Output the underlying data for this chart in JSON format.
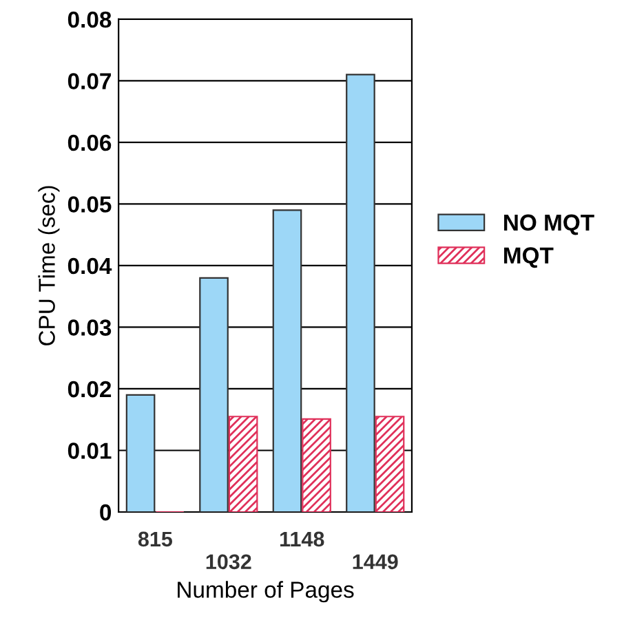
{
  "chart_data": {
    "type": "bar",
    "xlabel": "Number of Pages",
    "ylabel": "CPU Time (sec)",
    "categories": [
      "815",
      "1032",
      "1148",
      "1449"
    ],
    "series": [
      {
        "name": "NO MQT",
        "color": "#9dd7f7",
        "values": [
          0.019,
          0.038,
          0.049,
          0.071
        ]
      },
      {
        "name": "MQT",
        "color": "#e0305a",
        "values": [
          0,
          0.0155,
          0.0151,
          0.0155
        ]
      }
    ],
    "ylim": [
      0,
      0.08
    ],
    "yticks": [
      0,
      0.01,
      0.02,
      0.03,
      0.04,
      0.05,
      0.06,
      0.07,
      0.08
    ],
    "grid": "y",
    "legend": "right"
  }
}
